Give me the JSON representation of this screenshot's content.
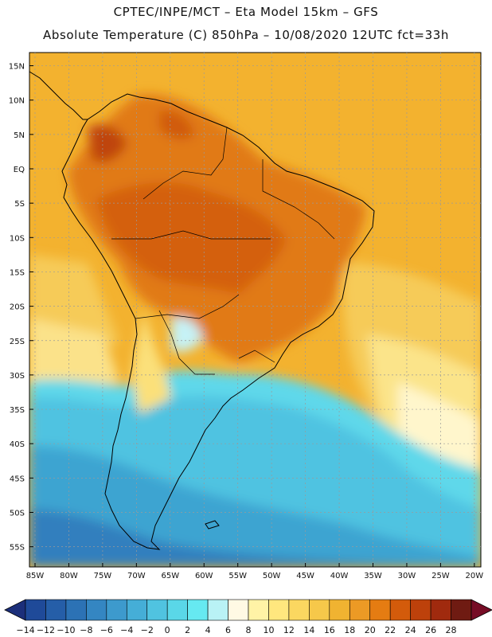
{
  "header": {
    "title_line1": "CPTEC/INPE/MCT –  Eta Model 15km – GFS",
    "title_line2": "Absolute Temperature (C) 850hPa – 10/08/2020 12UTC fct=33h"
  },
  "map": {
    "lat_labels": [
      "15N",
      "10N",
      "5N",
      "EQ",
      "5S",
      "10S",
      "15S",
      "20S",
      "25S",
      "30S",
      "35S",
      "40S",
      "45S",
      "50S",
      "55S"
    ],
    "lon_labels": [
      "85W",
      "80W",
      "75W",
      "70W",
      "65W",
      "60W",
      "55W",
      "50W",
      "45W",
      "40W",
      "35W",
      "30W",
      "25W",
      "20W"
    ],
    "grid_line_color": "#9a9a9a",
    "coast_color": "#000000"
  },
  "colorbar": {
    "labels": [
      "-14",
      "-12",
      "-10",
      "-8",
      "-6",
      "-4",
      "-2",
      "0",
      "2",
      "4",
      "6",
      "8",
      "10",
      "12",
      "14",
      "16",
      "18",
      "20",
      "22",
      "24",
      "26",
      "28"
    ],
    "colors": [
      "#1f4a99",
      "#255ea8",
      "#2c72b5",
      "#3486c2",
      "#3d9acd",
      "#45aed7",
      "#50c3e0",
      "#5ad7e8",
      "#66e9f1",
      "#b9f2f5",
      "#fff9e4",
      "#fff3a6",
      "#ffe77e",
      "#fbd760",
      "#f6c84a",
      "#f0b331",
      "#ec9a25",
      "#e57c12",
      "#d35b0b",
      "#bd410b",
      "#a02a0e",
      "#6f1b12"
    ],
    "under_color": "#1c2f7a",
    "over_color": "#760c25"
  }
}
